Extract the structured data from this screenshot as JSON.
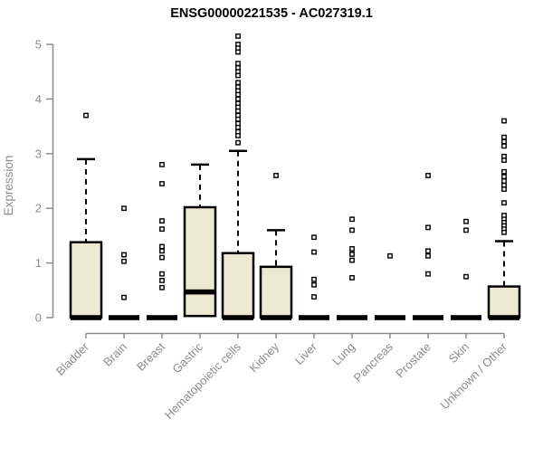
{
  "chart_data": {
    "type": "boxplot",
    "title": "ENSG00000221535 - AC027319.1",
    "ylabel": "Expression",
    "xlabel": "",
    "ylim": [
      0,
      5
    ],
    "y_ticks": [
      0,
      1,
      2,
      3,
      4,
      5
    ],
    "grid": "off",
    "colors": {
      "box_fill": "#ede9d1",
      "box_stroke": "#000000",
      "axis": "#8c8c8c",
      "title": "#000000",
      "background": "#ffffff"
    },
    "categories": [
      "Bladder",
      "Brain",
      "Breast",
      "Gastric",
      "Hematopoietic cells",
      "Kidney",
      "Liver",
      "Lung",
      "Pancreas",
      "Prostate",
      "Skin",
      "Unknown / Other"
    ],
    "series": [
      {
        "category": "Bladder",
        "q1": 0,
        "median": 0,
        "q3": 1.38,
        "whisker_low": 0,
        "whisker_high": 2.9,
        "outliers": [
          3.7
        ]
      },
      {
        "category": "Brain",
        "q1": 0,
        "median": 0,
        "q3": 0,
        "whisker_low": 0,
        "whisker_high": 0,
        "outliers": [
          2.0,
          1.15,
          1.03,
          0.37
        ]
      },
      {
        "category": "Breast",
        "q1": 0,
        "median": 0,
        "q3": 0,
        "whisker_low": 0,
        "whisker_high": 0,
        "outliers": [
          2.8,
          2.45,
          1.77,
          1.62,
          1.3,
          1.22,
          1.1,
          0.8,
          0.68,
          0.55
        ]
      },
      {
        "category": "Gastric",
        "q1": 0.03,
        "median": 0.47,
        "q3": 2.02,
        "whisker_low": 0.03,
        "whisker_high": 2.8,
        "outliers": []
      },
      {
        "category": "Hematopoietic cells",
        "q1": 0,
        "median": 0,
        "q3": 1.18,
        "whisker_low": 0,
        "whisker_high": 3.05,
        "outliers": [
          5.15,
          5.0,
          4.93,
          4.86,
          4.65,
          4.57,
          4.5,
          4.43,
          4.3,
          4.22,
          4.15,
          4.08,
          4.0,
          3.92,
          3.85,
          3.78,
          3.7,
          3.63,
          3.55,
          3.48,
          3.4,
          3.33,
          3.2
        ]
      },
      {
        "category": "Kidney",
        "q1": 0,
        "median": 0,
        "q3": 0.93,
        "whisker_low": 0,
        "whisker_high": 1.6,
        "outliers": [
          2.6
        ]
      },
      {
        "category": "Liver",
        "q1": 0,
        "median": 0,
        "q3": 0,
        "whisker_low": 0,
        "whisker_high": 0,
        "outliers": [
          1.47,
          1.2,
          0.7,
          0.6,
          0.38
        ]
      },
      {
        "category": "Lung",
        "q1": 0,
        "median": 0,
        "q3": 0,
        "whisker_low": 0,
        "whisker_high": 0,
        "outliers": [
          1.8,
          1.6,
          1.26,
          1.16,
          1.05,
          0.73
        ]
      },
      {
        "category": "Pancreas",
        "q1": 0,
        "median": 0,
        "q3": 0,
        "whisker_low": 0,
        "whisker_high": 0,
        "outliers": [
          1.13
        ]
      },
      {
        "category": "Prostate",
        "q1": 0,
        "median": 0,
        "q3": 0,
        "whisker_low": 0,
        "whisker_high": 0,
        "outliers": [
          2.6,
          1.65,
          1.22,
          1.13,
          0.8
        ]
      },
      {
        "category": "Skin",
        "q1": 0,
        "median": 0,
        "q3": 0,
        "whisker_low": 0,
        "whisker_high": 0,
        "outliers": [
          1.76,
          1.6,
          0.75
        ]
      },
      {
        "category": "Unknown / Other",
        "q1": 0,
        "median": 0,
        "q3": 0.57,
        "whisker_low": 0,
        "whisker_high": 1.4,
        "outliers": [
          3.6,
          3.3,
          3.22,
          3.14,
          2.95,
          2.88,
          2.67,
          2.58,
          2.5,
          2.42,
          2.35,
          2.1,
          1.87,
          1.8,
          1.74,
          1.68,
          1.62,
          1.56
        ]
      }
    ]
  }
}
